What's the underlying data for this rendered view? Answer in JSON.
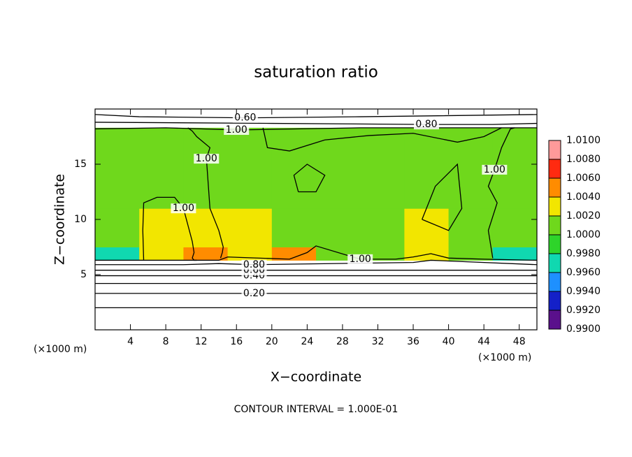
{
  "chart_data": {
    "type": "contour",
    "title": "saturation ratio",
    "xlabel": "X−coordinate",
    "ylabel": "Z−coordinate",
    "x_unit_labels": [
      "(×1000 m)",
      "(×1000 m)"
    ],
    "footer": "CONTOUR INTERVAL = 1.000E-01",
    "xlim": [
      0,
      50
    ],
    "ylim": [
      0,
      20
    ],
    "xticks": [
      4,
      8,
      12,
      16,
      20,
      24,
      28,
      32,
      36,
      40,
      44,
      48
    ],
    "yticks": [
      5,
      10,
      15
    ],
    "field": {
      "x_edges": [
        0,
        5,
        10,
        15,
        20,
        25,
        30,
        35,
        40,
        45,
        50
      ],
      "z_edges": [
        6.3,
        7.5,
        11,
        15,
        18.3
      ],
      "values": [
        [
          0.997,
          1.003,
          1.005,
          1.003,
          1.005,
          1.001,
          1.001,
          1.003,
          1.001,
          0.997
        ],
        [
          1.001,
          1.002,
          1.002,
          1.003,
          1.001,
          1.001,
          1.001,
          1.002,
          1.001,
          1.001
        ],
        [
          1.001,
          1.001,
          1.001,
          1.001,
          1.001,
          1.001,
          1.001,
          1.001,
          1.001,
          1.001
        ],
        [
          1.001,
          1.001,
          1.001,
          1.001,
          1.001,
          1.001,
          1.001,
          1.001,
          1.001,
          1.001
        ]
      ]
    },
    "colorbar": {
      "ticks": [
        {
          "value": 1.01,
          "label": "1.0100"
        },
        {
          "value": 1.008,
          "label": "1.0080"
        },
        {
          "value": 1.006,
          "label": "1.0060"
        },
        {
          "value": 1.004,
          "label": "1.0040"
        },
        {
          "value": 1.002,
          "label": "1.0020"
        },
        {
          "value": 1.0,
          "label": "1.0000"
        },
        {
          "value": 0.998,
          "label": "0.9980"
        },
        {
          "value": 0.996,
          "label": "0.9960"
        },
        {
          "value": 0.994,
          "label": "0.9940"
        },
        {
          "value": 0.992,
          "label": "0.9920"
        },
        {
          "value": 0.99,
          "label": "0.9900"
        }
      ],
      "colors": [
        "#ff9a9a",
        "#ff2a10",
        "#ff8c00",
        "#f2e600",
        "#6fd81c",
        "#2ed42a",
        "#10d8b0",
        "#1e90ff",
        "#1420c8",
        "#5a108c"
      ]
    },
    "contours": [
      {
        "label": null,
        "x": [
          0,
          50
        ],
        "z": [
          2.0,
          2.0
        ]
      },
      {
        "label": "0.20",
        "x": [
          0,
          10,
          18,
          50
        ],
        "z": [
          3.3,
          3.3,
          3.3,
          3.3
        ]
      },
      {
        "label": null,
        "x": [
          0,
          50
        ],
        "z": [
          4.2,
          4.2
        ]
      },
      {
        "label": "0.40",
        "x": [
          0,
          10,
          18,
          50
        ],
        "z": [
          4.9,
          4.9,
          4.9,
          4.9
        ]
      },
      {
        "label": "0.60",
        "x": [
          0,
          10,
          18,
          50
        ],
        "z": [
          5.4,
          5.4,
          5.4,
          5.4
        ]
      },
      {
        "label": "0.80",
        "x": [
          0,
          10,
          14,
          18,
          36,
          38,
          50
        ],
        "z": [
          5.9,
          5.9,
          6.0,
          5.9,
          6.1,
          6.3,
          5.9
        ]
      },
      {
        "label": "1.00",
        "x": [
          0,
          14,
          15,
          22,
          24,
          25,
          30,
          34,
          36,
          38,
          40,
          44,
          50
        ],
        "z": [
          6.3,
          6.3,
          6.6,
          6.4,
          7.0,
          7.6,
          6.4,
          6.4,
          6.6,
          6.9,
          6.5,
          6.4,
          6.3
        ]
      },
      {
        "label": "0.60",
        "x": [
          0,
          5,
          17,
          30,
          50
        ],
        "z": [
          19.5,
          19.3,
          19.2,
          19.3,
          19.5
        ]
      },
      {
        "label": "0.80",
        "x": [
          0,
          20,
          37.5,
          45,
          50
        ],
        "z": [
          18.8,
          18.7,
          18.6,
          18.6,
          18.7
        ]
      },
      {
        "label": "1.00",
        "x": [
          0,
          8,
          16,
          30,
          50
        ],
        "z": [
          18.2,
          18.3,
          18.1,
          18.3,
          18.3
        ]
      },
      {
        "label": "1.00",
        "x": [
          14.2,
          14.4,
          14.5,
          14,
          13,
          12.6,
          13,
          11.5,
          11,
          10.5
        ],
        "z": [
          6.5,
          7,
          7.5,
          9,
          11,
          15.5,
          16.5,
          17.5,
          18.0,
          18.3
        ]
      },
      {
        "label": "1.00",
        "x": [
          5.5,
          5.4,
          5.5,
          7,
          9,
          10,
          11,
          11.2,
          11,
          11.2,
          11.5
        ],
        "z": [
          6.3,
          9,
          11.5,
          12,
          12,
          11,
          8,
          7,
          6.5,
          6.3,
          6.3
        ]
      },
      {
        "label": "1.00",
        "x": [
          45,
          44.5,
          45.5,
          44.5,
          45.2,
          46,
          47,
          47.5
        ],
        "z": [
          6.5,
          9,
          11.5,
          13,
          14.5,
          16.5,
          18.2,
          18.3
        ]
      },
      {
        "label": null,
        "x": [
          19,
          19.5,
          22,
          26,
          31,
          36,
          41,
          44,
          46
        ],
        "z": [
          18.3,
          16.5,
          16.2,
          17.2,
          17.6,
          17.8,
          17,
          17.5,
          18.3
        ]
      },
      {
        "label": null,
        "x": [
          23,
          22.5,
          24,
          26,
          25,
          23
        ],
        "z": [
          12.5,
          14,
          15,
          14,
          12.5,
          12.5
        ]
      },
      {
        "label": null,
        "x": [
          37,
          38.5,
          41,
          41.5,
          40,
          37
        ],
        "z": [
          10,
          13,
          15,
          11,
          9,
          10
        ]
      }
    ]
  }
}
